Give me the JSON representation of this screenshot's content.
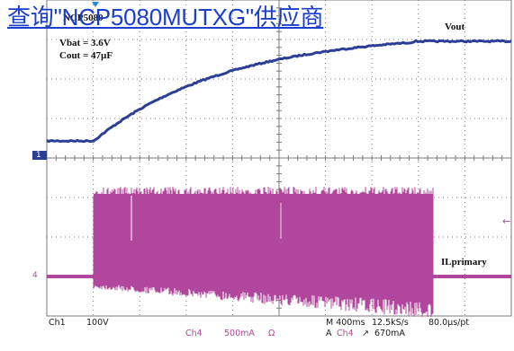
{
  "overlay_link": {
    "text": "查询\"NCP5080MUTXG\"供应商"
  },
  "annotations": {
    "device": "NCP5080",
    "vbat": "Vbat = 3.6V",
    "cout": "Cout = 47µF",
    "vout_label": "Vout",
    "il_label": "ILprimary"
  },
  "markers": {
    "ch1": "1",
    "ch4": "4",
    "trigger_level_arrow": "←"
  },
  "status_bar": {
    "ch1_name": "Ch1",
    "ch1_scale": "100V",
    "ch4_name": "Ch4",
    "ch4_scale": "500mA",
    "ch4_coupling": "Ω",
    "timebase": "M 400ms",
    "sample_rate": "12.5kS/s",
    "resolution": "80.0µs/pt",
    "trigger_source_prefix": "A",
    "trigger_source": "Ch4",
    "trigger_slope": "↗",
    "trigger_level": "670mA"
  },
  "colors": {
    "ch1_trace": "#2b3f96",
    "ch4_trace": "#b0479c",
    "grid": "#7a7a7a",
    "link": "#1a3fcc",
    "trigger_marker": "#1e88e5"
  }
}
